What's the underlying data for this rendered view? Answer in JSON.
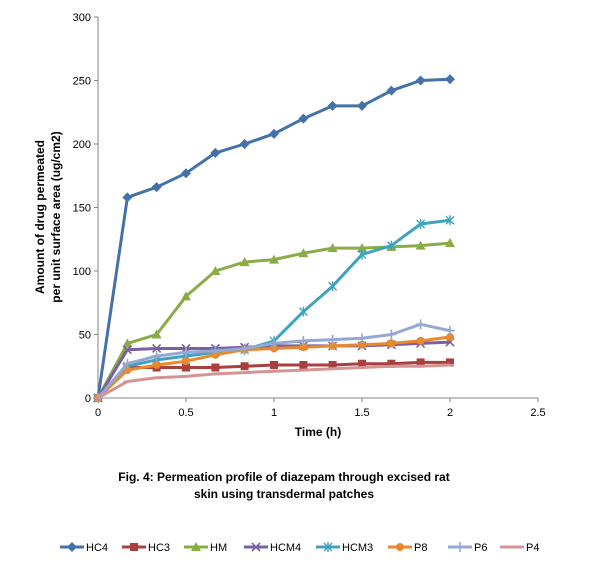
{
  "chart_data": {
    "type": "line",
    "title": "",
    "xlabel": "Time (h)",
    "ylabel": [
      "Amount of drug permeated",
      "per unit surface area (ug/cm2)"
    ],
    "xlim": [
      0,
      2.5
    ],
    "ylim": [
      0,
      300
    ],
    "xticks": [
      0,
      0.5,
      1,
      1.5,
      2,
      2.5
    ],
    "xtick_labels": [
      "0",
      "0.5",
      "1",
      "1.5",
      "2",
      "2.5"
    ],
    "yticks": [
      0,
      50,
      100,
      150,
      200,
      250,
      300
    ],
    "yticks_labels": [
      "0",
      "50",
      "100",
      "150",
      "200",
      "250",
      "300"
    ],
    "grid": false,
    "legend_position": "bottom",
    "x": [
      0,
      0.167,
      0.333,
      0.5,
      0.667,
      0.833,
      1,
      1.167,
      1.333,
      1.5,
      1.667,
      1.833,
      2
    ],
    "series": [
      {
        "name": "HC4",
        "color": "#4472a8",
        "marker": "diamond",
        "values": [
          0,
          158,
          166,
          177,
          193,
          200,
          208,
          220,
          230,
          230,
          242,
          250,
          251
        ]
      },
      {
        "name": "HC3",
        "color": "#a84040",
        "marker": "square",
        "values": [
          0,
          24,
          24,
          24,
          24,
          25,
          26,
          26,
          26,
          27,
          27,
          28,
          28
        ]
      },
      {
        "name": "HM",
        "color": "#8aac46",
        "marker": "triangle",
        "values": [
          0,
          43,
          50,
          80,
          100,
          107,
          109,
          114,
          118,
          118,
          119,
          120,
          122
        ]
      },
      {
        "name": "HCM4",
        "color": "#7b5fa0",
        "marker": "x",
        "values": [
          0,
          38,
          39,
          39,
          39,
          40,
          41,
          41,
          41,
          41,
          42,
          43,
          44
        ]
      },
      {
        "name": "HCM3",
        "color": "#3fa3bf",
        "marker": "star",
        "values": [
          0,
          25,
          30,
          33,
          36,
          38,
          45,
          68,
          88,
          113,
          120,
          137,
          140
        ]
      },
      {
        "name": "P8",
        "color": "#e8892e",
        "marker": "circle",
        "values": [
          0,
          22,
          26,
          29,
          34,
          38,
          39,
          40,
          41,
          42,
          43,
          45,
          48
        ]
      },
      {
        "name": "P6",
        "color": "#93a8d2",
        "marker": "plus",
        "values": [
          0,
          27,
          33,
          36,
          37,
          39,
          43,
          45,
          46,
          47,
          50,
          58,
          53
        ]
      },
      {
        "name": "P4",
        "color": "#d69393",
        "marker": "dash",
        "values": [
          0,
          13,
          16,
          17,
          19,
          20,
          21,
          22,
          23,
          24,
          25,
          25,
          26
        ]
      }
    ]
  },
  "caption": {
    "line1": "Fig. 4: Permeation profile of diazepam through excised rat",
    "line2": "skin using transdermal patches"
  }
}
